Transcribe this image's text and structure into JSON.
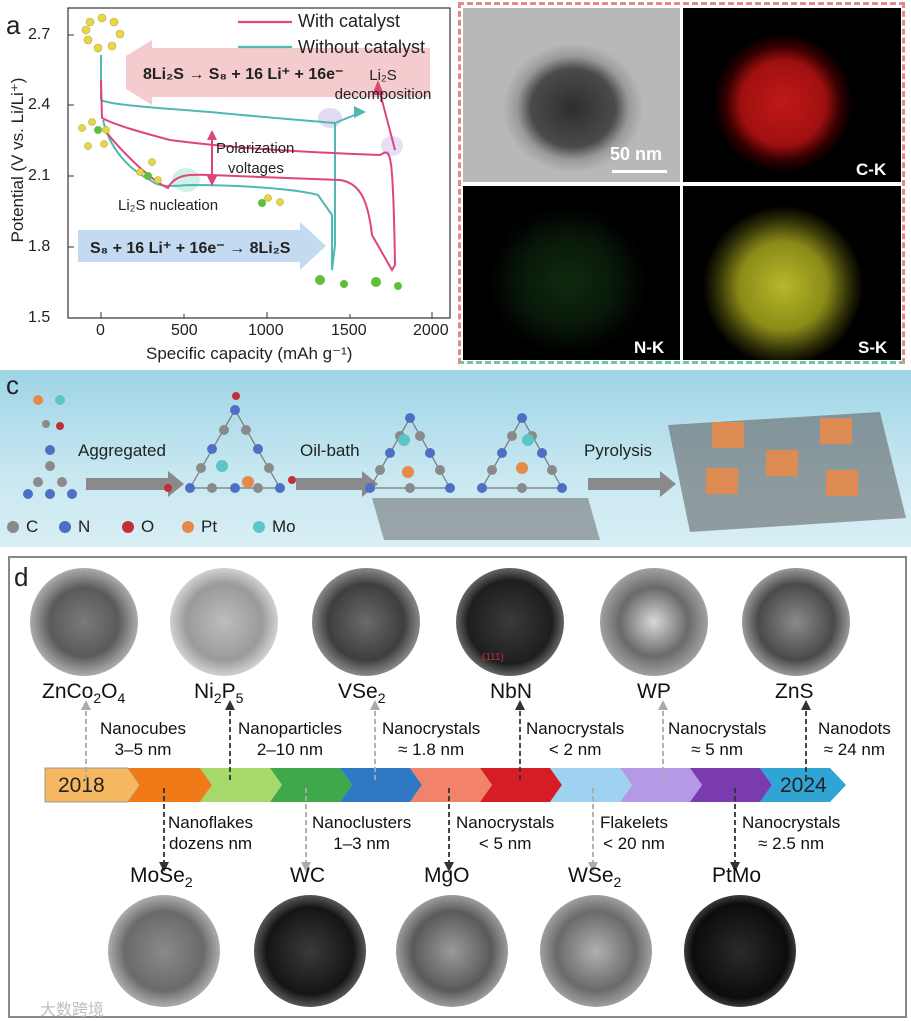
{
  "panel_a": {
    "letter": "a",
    "legend": [
      "With catalyst",
      "Without catalyst"
    ],
    "colors": {
      "with": "#e0457a",
      "without": "#4fb8b0"
    },
    "ylabel": "Potential (V vs. Li/Li⁺)",
    "xlabel": "Specific capacity (mAh g⁻¹)",
    "yticks": [
      "2.7",
      "2.4",
      "2.1",
      "1.8",
      "1.5"
    ],
    "xticks": [
      "0",
      "500",
      "1000",
      "1500",
      "2000"
    ],
    "charge_reaction": "8Li₂S → S₈ + 16 Li⁺ + 16e⁻",
    "discharge_reaction": "S₈ + 16 Li⁺ + 16e⁻ → 8Li₂S",
    "annot_decomp": "Li₂S decomposition",
    "annot_polar1": "Polarization",
    "annot_polar2": "voltages",
    "annot_nucl": "Li₂S nucleation"
  },
  "panel_b": {
    "letter": "b",
    "scale": "50 nm",
    "maps": [
      "C-K",
      "N-K",
      "S-K"
    ]
  },
  "panel_c": {
    "letter": "c",
    "steps": [
      "Aggregated",
      "Oil-bath",
      "Pyrolysis"
    ],
    "legend": [
      {
        "label": "C",
        "color": "#8a8a8a"
      },
      {
        "label": "N",
        "color": "#4e6fc4"
      },
      {
        "label": "O",
        "color": "#c0303a"
      },
      {
        "label": "Pt",
        "color": "#e58a4a"
      },
      {
        "label": "Mo",
        "color": "#5cc6c6"
      }
    ]
  },
  "panel_d": {
    "letter": "d",
    "years": [
      "2018",
      "2024"
    ],
    "top": [
      {
        "name": "ZnCo",
        "sub1": "2",
        "mid": "O",
        "sub2": "4",
        "desc1": "Nanocubes",
        "desc2": "3–5 nm"
      },
      {
        "name": "Ni",
        "sub1": "2",
        "mid": "P",
        "sub2": "5",
        "desc1": "Nanoparticles",
        "desc2": "2–10 nm"
      },
      {
        "name": "VSe",
        "sub1": "2",
        "mid": "",
        "sub2": "",
        "desc1": "Nanocrystals",
        "desc2": "≈ 1.8 nm"
      },
      {
        "name": "NbN",
        "sub1": "",
        "mid": "",
        "sub2": "",
        "desc1": "Nanocrystals",
        "desc2": "< 2 nm"
      },
      {
        "name": "WP",
        "sub1": "",
        "mid": "",
        "sub2": "",
        "desc1": "Nanocrystals",
        "desc2": "≈ 5 nm"
      },
      {
        "name": "ZnS",
        "sub1": "",
        "mid": "",
        "sub2": "",
        "desc1": "Nanodots",
        "desc2": "≈ 24 nm"
      }
    ],
    "bottom": [
      {
        "name": "MoSe",
        "sub1": "2",
        "desc1": "Nanoflakes",
        "desc2": "dozens nm"
      },
      {
        "name": "WC",
        "sub1": "",
        "desc1": "Nanoclusters",
        "desc2": "1–3 nm"
      },
      {
        "name": "MgO",
        "sub1": "",
        "desc1": "Nanocrystals",
        "desc2": "< 5 nm"
      },
      {
        "name": "WSe",
        "sub1": "2",
        "desc1": "Flakelets",
        "desc2": "< 20 nm"
      },
      {
        "name": "PtMo",
        "sub1": "",
        "desc1": "Nanocrystals",
        "desc2": "≈ 2.5 nm"
      }
    ],
    "nbn_inset": "(111)",
    "watermark": "大数跨境"
  }
}
